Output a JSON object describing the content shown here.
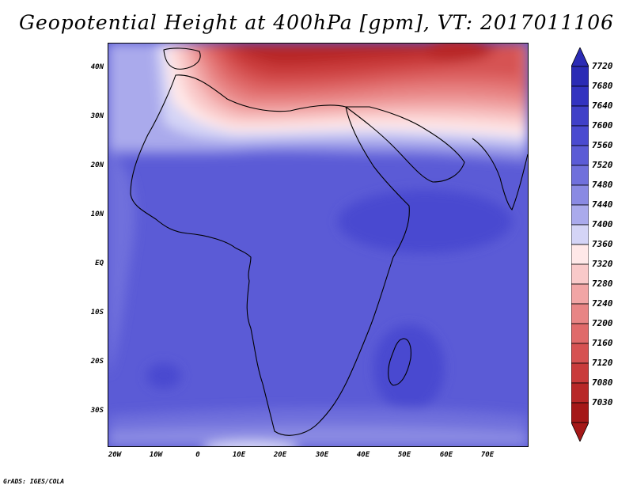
{
  "title": "Geopotential Height at 400hPa [gpm], VT: 2017011106",
  "credit": "GrADS: IGES/COLA",
  "map": {
    "lat_labels": [
      "40N",
      "30N",
      "20N",
      "10N",
      "EQ",
      "10S",
      "20S",
      "30S"
    ],
    "lon_labels": [
      "20W",
      "10W",
      "0",
      "10E",
      "20E",
      "30E",
      "40E",
      "50E",
      "60E",
      "70E"
    ]
  },
  "colorbar": {
    "levels": [
      "7720",
      "7680",
      "7640",
      "7600",
      "7560",
      "7520",
      "7480",
      "7440",
      "7400",
      "7360",
      "7320",
      "7280",
      "7240",
      "7200",
      "7160",
      "7120",
      "7080",
      "7030"
    ],
    "colors": [
      "#2b2bb5",
      "#3333c0",
      "#4040c8",
      "#4a4ad0",
      "#5b5bd6",
      "#7070dc",
      "#8a8ae3",
      "#aaaaec",
      "#d4d4f6",
      "#ffe8e8",
      "#f9c9c9",
      "#f1a5a5",
      "#e88585",
      "#e06a6a",
      "#d65252",
      "#c93b3b",
      "#b82828",
      "#a51818"
    ]
  }
}
